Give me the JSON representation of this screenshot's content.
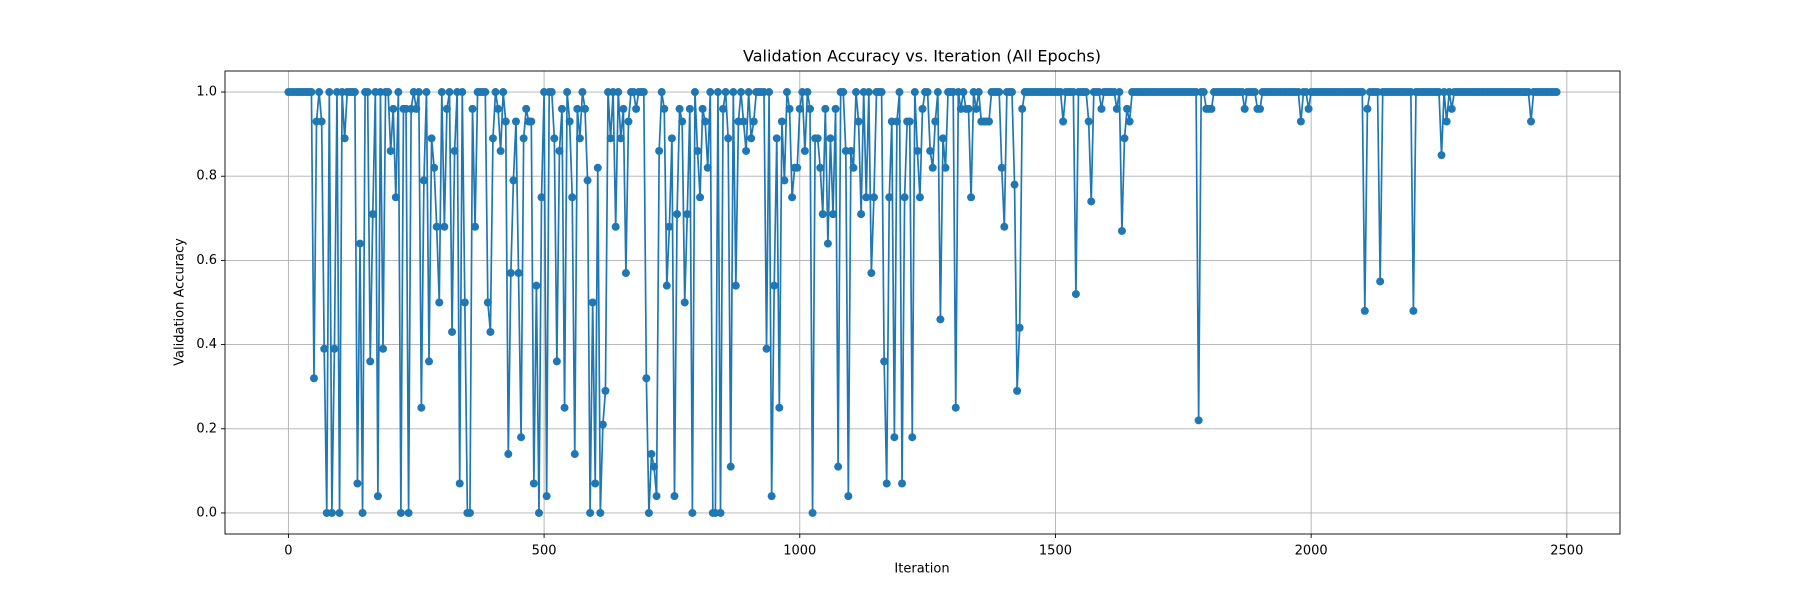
{
  "chart_data": {
    "type": "line",
    "title": "Validation Accuracy vs. Iteration (All Epochs)",
    "x_label": "Iteration",
    "y_label": "Validation Accuracy",
    "xlim": [
      -124,
      2604
    ],
    "ylim": [
      -0.05,
      1.05
    ],
    "xticks": [
      0,
      500,
      1000,
      1500,
      2000,
      2500
    ],
    "yticks": [
      {
        "value": 0,
        "label": "0.0"
      },
      {
        "value": 0.2,
        "label": "0.2"
      },
      {
        "value": 0.4,
        "label": "0.4"
      },
      {
        "value": 0.6,
        "label": "0.6"
      },
      {
        "value": 0.8,
        "label": "0.8"
      },
      {
        "value": 1,
        "label": "1.0"
      }
    ],
    "grid": true,
    "marker": "circle",
    "x": [
      0,
      5,
      10,
      15,
      20,
      25,
      30,
      35,
      40,
      45,
      50,
      55,
      60,
      65,
      70,
      75,
      80,
      85,
      90,
      95,
      100,
      105,
      110,
      115,
      120,
      125,
      130,
      135,
      140,
      145,
      150,
      155,
      160,
      165,
      170,
      175,
      180,
      185,
      190,
      195,
      200,
      205,
      210,
      215,
      220,
      225,
      230,
      235,
      240,
      245,
      250,
      255,
      260,
      265,
      270,
      275,
      280,
      285,
      290,
      295,
      300,
      305,
      310,
      315,
      320,
      325,
      330,
      335,
      340,
      345,
      350,
      355,
      360,
      365,
      370,
      375,
      380,
      385,
      390,
      395,
      400,
      405,
      410,
      415,
      420,
      425,
      430,
      435,
      440,
      445,
      450,
      455,
      460,
      465,
      470,
      475,
      480,
      485,
      490,
      495,
      500,
      505,
      510,
      515,
      520,
      525,
      530,
      535,
      540,
      545,
      550,
      555,
      560,
      565,
      570,
      575,
      580,
      585,
      590,
      595,
      600,
      605,
      610,
      615,
      620,
      625,
      630,
      635,
      640,
      645,
      650,
      655,
      660,
      665,
      670,
      675,
      680,
      685,
      690,
      695,
      700,
      705,
      710,
      715,
      720,
      725,
      730,
      735,
      740,
      745,
      750,
      755,
      760,
      765,
      770,
      775,
      780,
      785,
      790,
      795,
      800,
      805,
      810,
      815,
      820,
      825,
      830,
      835,
      840,
      845,
      850,
      855,
      860,
      865,
      870,
      875,
      880,
      885,
      890,
      895,
      900,
      905,
      910,
      915,
      920,
      925,
      930,
      935,
      940,
      945,
      950,
      955,
      960,
      965,
      970,
      975,
      980,
      985,
      990,
      995,
      1000,
      1005,
      1010,
      1015,
      1020,
      1025,
      1030,
      1035,
      1040,
      1045,
      1050,
      1055,
      1060,
      1065,
      1070,
      1075,
      1080,
      1085,
      1090,
      1095,
      1100,
      1105,
      1110,
      1115,
      1120,
      1125,
      1130,
      1135,
      1140,
      1145,
      1150,
      1155,
      1160,
      1165,
      1170,
      1175,
      1180,
      1185,
      1190,
      1195,
      1200,
      1205,
      1210,
      1215,
      1220,
      1225,
      1230,
      1235,
      1240,
      1245,
      1250,
      1255,
      1260,
      1265,
      1270,
      1275,
      1280,
      1285,
      1290,
      1295,
      1300,
      1305,
      1310,
      1315,
      1320,
      1325,
      1330,
      1335,
      1340,
      1345,
      1350,
      1355,
      1360,
      1365,
      1370,
      1375,
      1380,
      1385,
      1390,
      1395,
      1400,
      1405,
      1410,
      1415,
      1420,
      1425,
      1430,
      1435,
      1440,
      1445,
      1450,
      1455,
      1460,
      1465,
      1470,
      1475,
      1480,
      1485,
      1490,
      1495,
      1500,
      1505,
      1510,
      1515,
      1520,
      1525,
      1530,
      1535,
      1540,
      1545,
      1550,
      1555,
      1560,
      1565,
      1570,
      1575,
      1580,
      1585,
      1590,
      1595,
      1600,
      1605,
      1610,
      1615,
      1620,
      1625,
      1630,
      1635,
      1640,
      1645,
      1650,
      1655,
      1660,
      1665,
      1670,
      1675,
      1680,
      1685,
      1690,
      1695,
      1700,
      1705,
      1710,
      1715,
      1720,
      1725,
      1730,
      1735,
      1740,
      1745,
      1750,
      1755,
      1760,
      1765,
      1770,
      1775,
      1780,
      1785,
      1790,
      1795,
      1800,
      1805,
      1810,
      1815,
      1820,
      1825,
      1830,
      1835,
      1840,
      1845,
      1850,
      1855,
      1860,
      1865,
      1870,
      1875,
      1880,
      1885,
      1890,
      1895,
      1900,
      1905,
      1910,
      1915,
      1920,
      1925,
      1930,
      1935,
      1940,
      1945,
      1950,
      1955,
      1960,
      1965,
      1970,
      1975,
      1980,
      1985,
      1990,
      1995,
      2000,
      2005,
      2010,
      2015,
      2020,
      2025,
      2030,
      2035,
      2040,
      2045,
      2050,
      2055,
      2060,
      2065,
      2070,
      2075,
      2080,
      2085,
      2090,
      2095,
      2100,
      2105,
      2110,
      2115,
      2120,
      2125,
      2130,
      2135,
      2140,
      2145,
      2150,
      2155,
      2160,
      2165,
      2170,
      2175,
      2180,
      2185,
      2190,
      2195,
      2200,
      2205,
      2210,
      2215,
      2220,
      2225,
      2230,
      2235,
      2240,
      2245,
      2250,
      2255,
      2260,
      2265,
      2270,
      2275,
      2280,
      2285,
      2290,
      2295,
      2300,
      2305,
      2310,
      2315,
      2320,
      2325,
      2330,
      2335,
      2340,
      2345,
      2350,
      2355,
      2360,
      2365,
      2370,
      2375,
      2380,
      2385,
      2390,
      2395,
      2400,
      2405,
      2410,
      2415,
      2420,
      2425,
      2430,
      2435,
      2440,
      2445,
      2450,
      2455,
      2460,
      2465,
      2470,
      2475,
      2480
    ],
    "series": [
      {
        "color": "#1f77b4",
        "values": [
          1,
          1,
          1,
          1,
          1,
          1,
          1,
          1,
          1,
          1,
          0.32,
          0.93,
          1,
          0.93,
          0.39,
          0,
          1,
          0,
          0.39,
          1,
          0,
          1,
          0.89,
          1,
          1,
          1,
          1,
          0.07,
          0.64,
          0,
          1,
          1,
          0.36,
          0.71,
          1,
          0.04,
          1,
          0.39,
          1,
          1,
          0.86,
          0.96,
          0.75,
          1,
          0,
          0.96,
          0.96,
          0,
          0.96,
          1,
          0.96,
          1,
          0.25,
          0.79,
          1,
          0.36,
          0.89,
          0.82,
          0.68,
          0.5,
          1,
          0.68,
          0.96,
          1,
          0.43,
          0.86,
          1,
          0.07,
          1,
          0.5,
          0,
          0,
          0.96,
          0.68,
          1,
          1,
          1,
          1,
          0.5,
          0.43,
          0.89,
          1,
          0.96,
          0.86,
          1,
          0.93,
          0.14,
          0.57,
          0.79,
          0.93,
          0.57,
          0.18,
          0.89,
          0.96,
          0.93,
          0.93,
          0.07,
          0.54,
          0,
          0.75,
          1,
          0.04,
          1,
          1,
          0.89,
          0.36,
          0.86,
          0.96,
          0.25,
          1,
          0.93,
          0.75,
          0.14,
          0.96,
          0.89,
          1,
          0.96,
          0.79,
          0,
          0.5,
          0.07,
          0.82,
          0,
          0.21,
          0.29,
          1,
          0.89,
          1,
          0.68,
          1,
          0.89,
          0.96,
          0.57,
          0.93,
          1,
          1,
          0.96,
          1,
          1,
          1,
          0.32,
          0,
          0.14,
          0.11,
          0.04,
          0.86,
          1,
          0.96,
          0.54,
          0.68,
          0.89,
          0.04,
          0.71,
          0.96,
          0.93,
          0.5,
          0.71,
          0.96,
          0,
          1,
          0.86,
          0.75,
          0.96,
          0.93,
          0.82,
          1,
          0,
          0,
          1,
          0,
          0.96,
          1,
          0.89,
          0.11,
          1,
          0.54,
          0.93,
          1,
          0.93,
          0.86,
          1,
          0.89,
          0.93,
          1,
          1,
          1,
          1,
          0.39,
          1,
          0.04,
          0.54,
          0.89,
          0.25,
          0.93,
          0.79,
          1,
          0.96,
          0.75,
          0.82,
          0.82,
          0.96,
          1,
          0.86,
          1,
          0.96,
          0,
          0.89,
          0.89,
          0.82,
          0.71,
          0.96,
          0.64,
          0.89,
          0.71,
          0.96,
          0.11,
          1,
          1,
          0.86,
          0.04,
          0.86,
          0.82,
          1,
          0.93,
          0.71,
          1,
          0.75,
          1,
          0.57,
          0.75,
          1,
          1,
          1,
          0.36,
          0.07,
          0.75,
          0.93,
          0.18,
          0.93,
          1,
          0.07,
          0.75,
          0.93,
          0.93,
          0.18,
          1,
          0.86,
          0.75,
          0.96,
          1,
          1,
          0.86,
          0.82,
          0.93,
          1,
          0.46,
          0.89,
          0.82,
          1,
          1,
          1,
          0.25,
          1,
          0.96,
          1,
          0.96,
          0.96,
          0.75,
          1,
          0.96,
          1,
          0.93,
          0.93,
          0.93,
          0.93,
          1,
          1,
          1,
          1,
          0.82,
          0.68,
          1,
          1,
          1,
          0.78,
          0.29,
          0.44,
          0.96,
          1,
          1,
          1,
          1,
          1,
          1,
          1,
          1,
          1,
          1,
          1,
          1,
          1,
          1,
          1,
          0.93,
          1,
          1,
          1,
          1,
          0.52,
          1,
          1,
          1,
          1,
          0.93,
          0.74,
          1,
          1,
          1,
          0.96,
          1,
          1,
          1,
          1,
          1,
          0.96,
          1,
          0.67,
          0.89,
          0.96,
          0.93,
          1,
          1,
          1,
          1,
          1,
          1,
          1,
          1,
          1,
          1,
          1,
          1,
          1,
          1,
          1,
          1,
          1,
          1,
          1,
          1,
          1,
          1,
          1,
          1,
          1,
          1,
          0.22,
          1,
          1,
          0.96,
          0.96,
          0.96,
          1,
          1,
          1,
          1,
          1,
          1,
          1,
          1,
          1,
          1,
          1,
          1,
          0.96,
          1,
          1,
          1,
          1,
          0.96,
          0.96,
          1,
          1,
          1,
          1,
          1,
          1,
          1,
          1,
          1,
          1,
          1,
          1,
          1,
          1,
          1,
          0.93,
          1,
          1,
          0.96,
          1,
          1,
          1,
          1,
          1,
          1,
          1,
          1,
          1,
          1,
          1,
          1,
          1,
          1,
          1,
          1,
          1,
          1,
          1,
          1,
          1,
          0.48,
          0.96,
          1,
          1,
          1,
          1,
          0.55,
          1,
          1,
          1,
          1,
          1,
          1,
          1,
          1,
          1,
          1,
          1,
          1,
          0.48,
          1,
          1,
          1,
          1,
          1,
          1,
          1,
          1,
          1,
          1,
          0.85,
          1,
          0.93,
          1,
          0.96,
          1,
          1,
          1,
          1,
          1,
          1,
          1,
          1,
          1,
          1,
          1,
          1,
          1,
          1,
          1,
          1,
          1,
          1,
          1,
          1,
          1,
          1,
          1,
          1,
          1,
          1,
          1,
          1,
          1,
          1,
          0.93,
          1,
          1,
          1,
          1,
          1,
          1,
          1,
          1,
          1,
          1
        ]
      }
    ]
  }
}
